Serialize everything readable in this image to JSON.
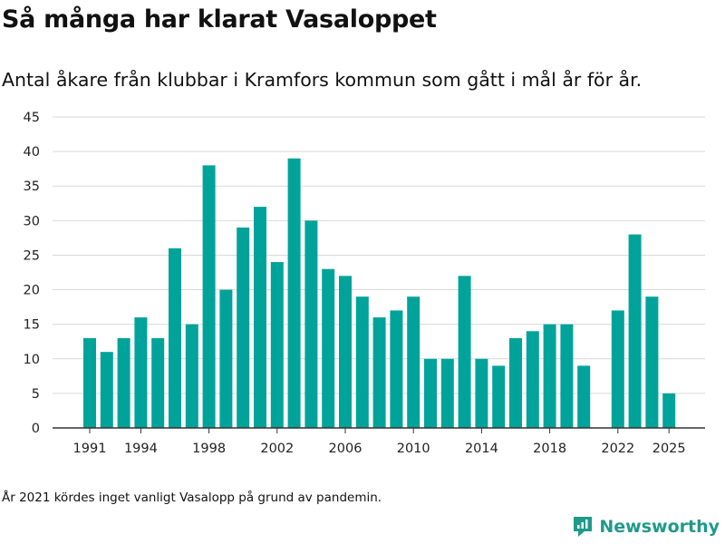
{
  "header": {
    "title": "Så många har klarat Vasaloppet",
    "subtitle": "Antal åkare från klubbar i Kramfors kommun som gått i mål år för år."
  },
  "footnote": "År 2021 kördes inget vanligt Vasalopp på grund av pandemin.",
  "brand": {
    "name": "Newsworthy",
    "icon": "newsworthy-logo-icon",
    "color": "#1f9a8a"
  },
  "colors": {
    "bar": "#00a39a",
    "grid": "#d9d9d9",
    "axis": "#333333"
  },
  "chart_data": {
    "type": "bar",
    "x": [
      1991,
      1992,
      1993,
      1994,
      1995,
      1996,
      1997,
      1998,
      1999,
      2000,
      2001,
      2002,
      2003,
      2004,
      2005,
      2006,
      2007,
      2008,
      2009,
      2010,
      2011,
      2012,
      2013,
      2014,
      2015,
      2016,
      2017,
      2018,
      2019,
      2020,
      2021,
      2022,
      2023,
      2024,
      2025
    ],
    "values": [
      13,
      11,
      13,
      16,
      13,
      26,
      15,
      38,
      20,
      29,
      32,
      24,
      39,
      30,
      23,
      22,
      19,
      16,
      17,
      19,
      10,
      10,
      22,
      10,
      9,
      13,
      14,
      15,
      15,
      9,
      null,
      17,
      28,
      19,
      5
    ],
    "x_ticks": [
      1991,
      1994,
      1998,
      2002,
      2006,
      2010,
      2014,
      2018,
      2022,
      2025
    ],
    "y_ticks": [
      0,
      5,
      10,
      15,
      20,
      25,
      30,
      35,
      40,
      45
    ],
    "ylim": [
      0,
      45
    ],
    "grid": true
  }
}
